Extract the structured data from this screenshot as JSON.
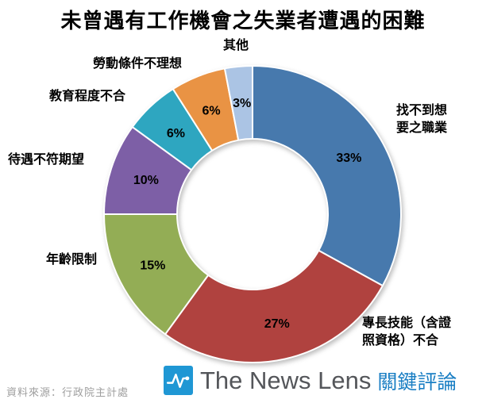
{
  "title": "未曾遇有工作機會之失業者遭遇的困難",
  "source": "資料來源：行政院主計處",
  "logo": {
    "brand": "The News Lens",
    "brand_zh": "關鍵評論",
    "icon": "pulse-icon",
    "square_color": "#1f97d4",
    "brand_color": "#54565a",
    "brand_zh_color": "#1b7fc4"
  },
  "chart_data": {
    "type": "pie",
    "donut": true,
    "title": "未曾遇有工作機會之失業者遭遇的困難",
    "start_angle_deg": 0,
    "direction": "clockwise",
    "hole_radius_ratio": 0.51,
    "legend": "none",
    "segments": [
      {
        "label": "找不到想要之職業",
        "value": 33,
        "pct_label": "33%",
        "color": "#4779ad"
      },
      {
        "label": "專長技能（含證照資格）不合",
        "value": 27,
        "pct_label": "27%",
        "color": "#b0423f"
      },
      {
        "label": "年齡限制",
        "value": 15,
        "pct_label": "15%",
        "color": "#93ad55"
      },
      {
        "label": "待遇不符期望",
        "value": 10,
        "pct_label": "10%",
        "color": "#7d5fa6"
      },
      {
        "label": "教育程度不合",
        "value": 6,
        "pct_label": "6%",
        "color": "#2ea6c0"
      },
      {
        "label": "勞動條件不理想",
        "value": 6,
        "pct_label": "6%",
        "color": "#e99344"
      },
      {
        "label": "其他",
        "value": 3,
        "pct_label": "3%",
        "color": "#abc4e4"
      }
    ]
  }
}
